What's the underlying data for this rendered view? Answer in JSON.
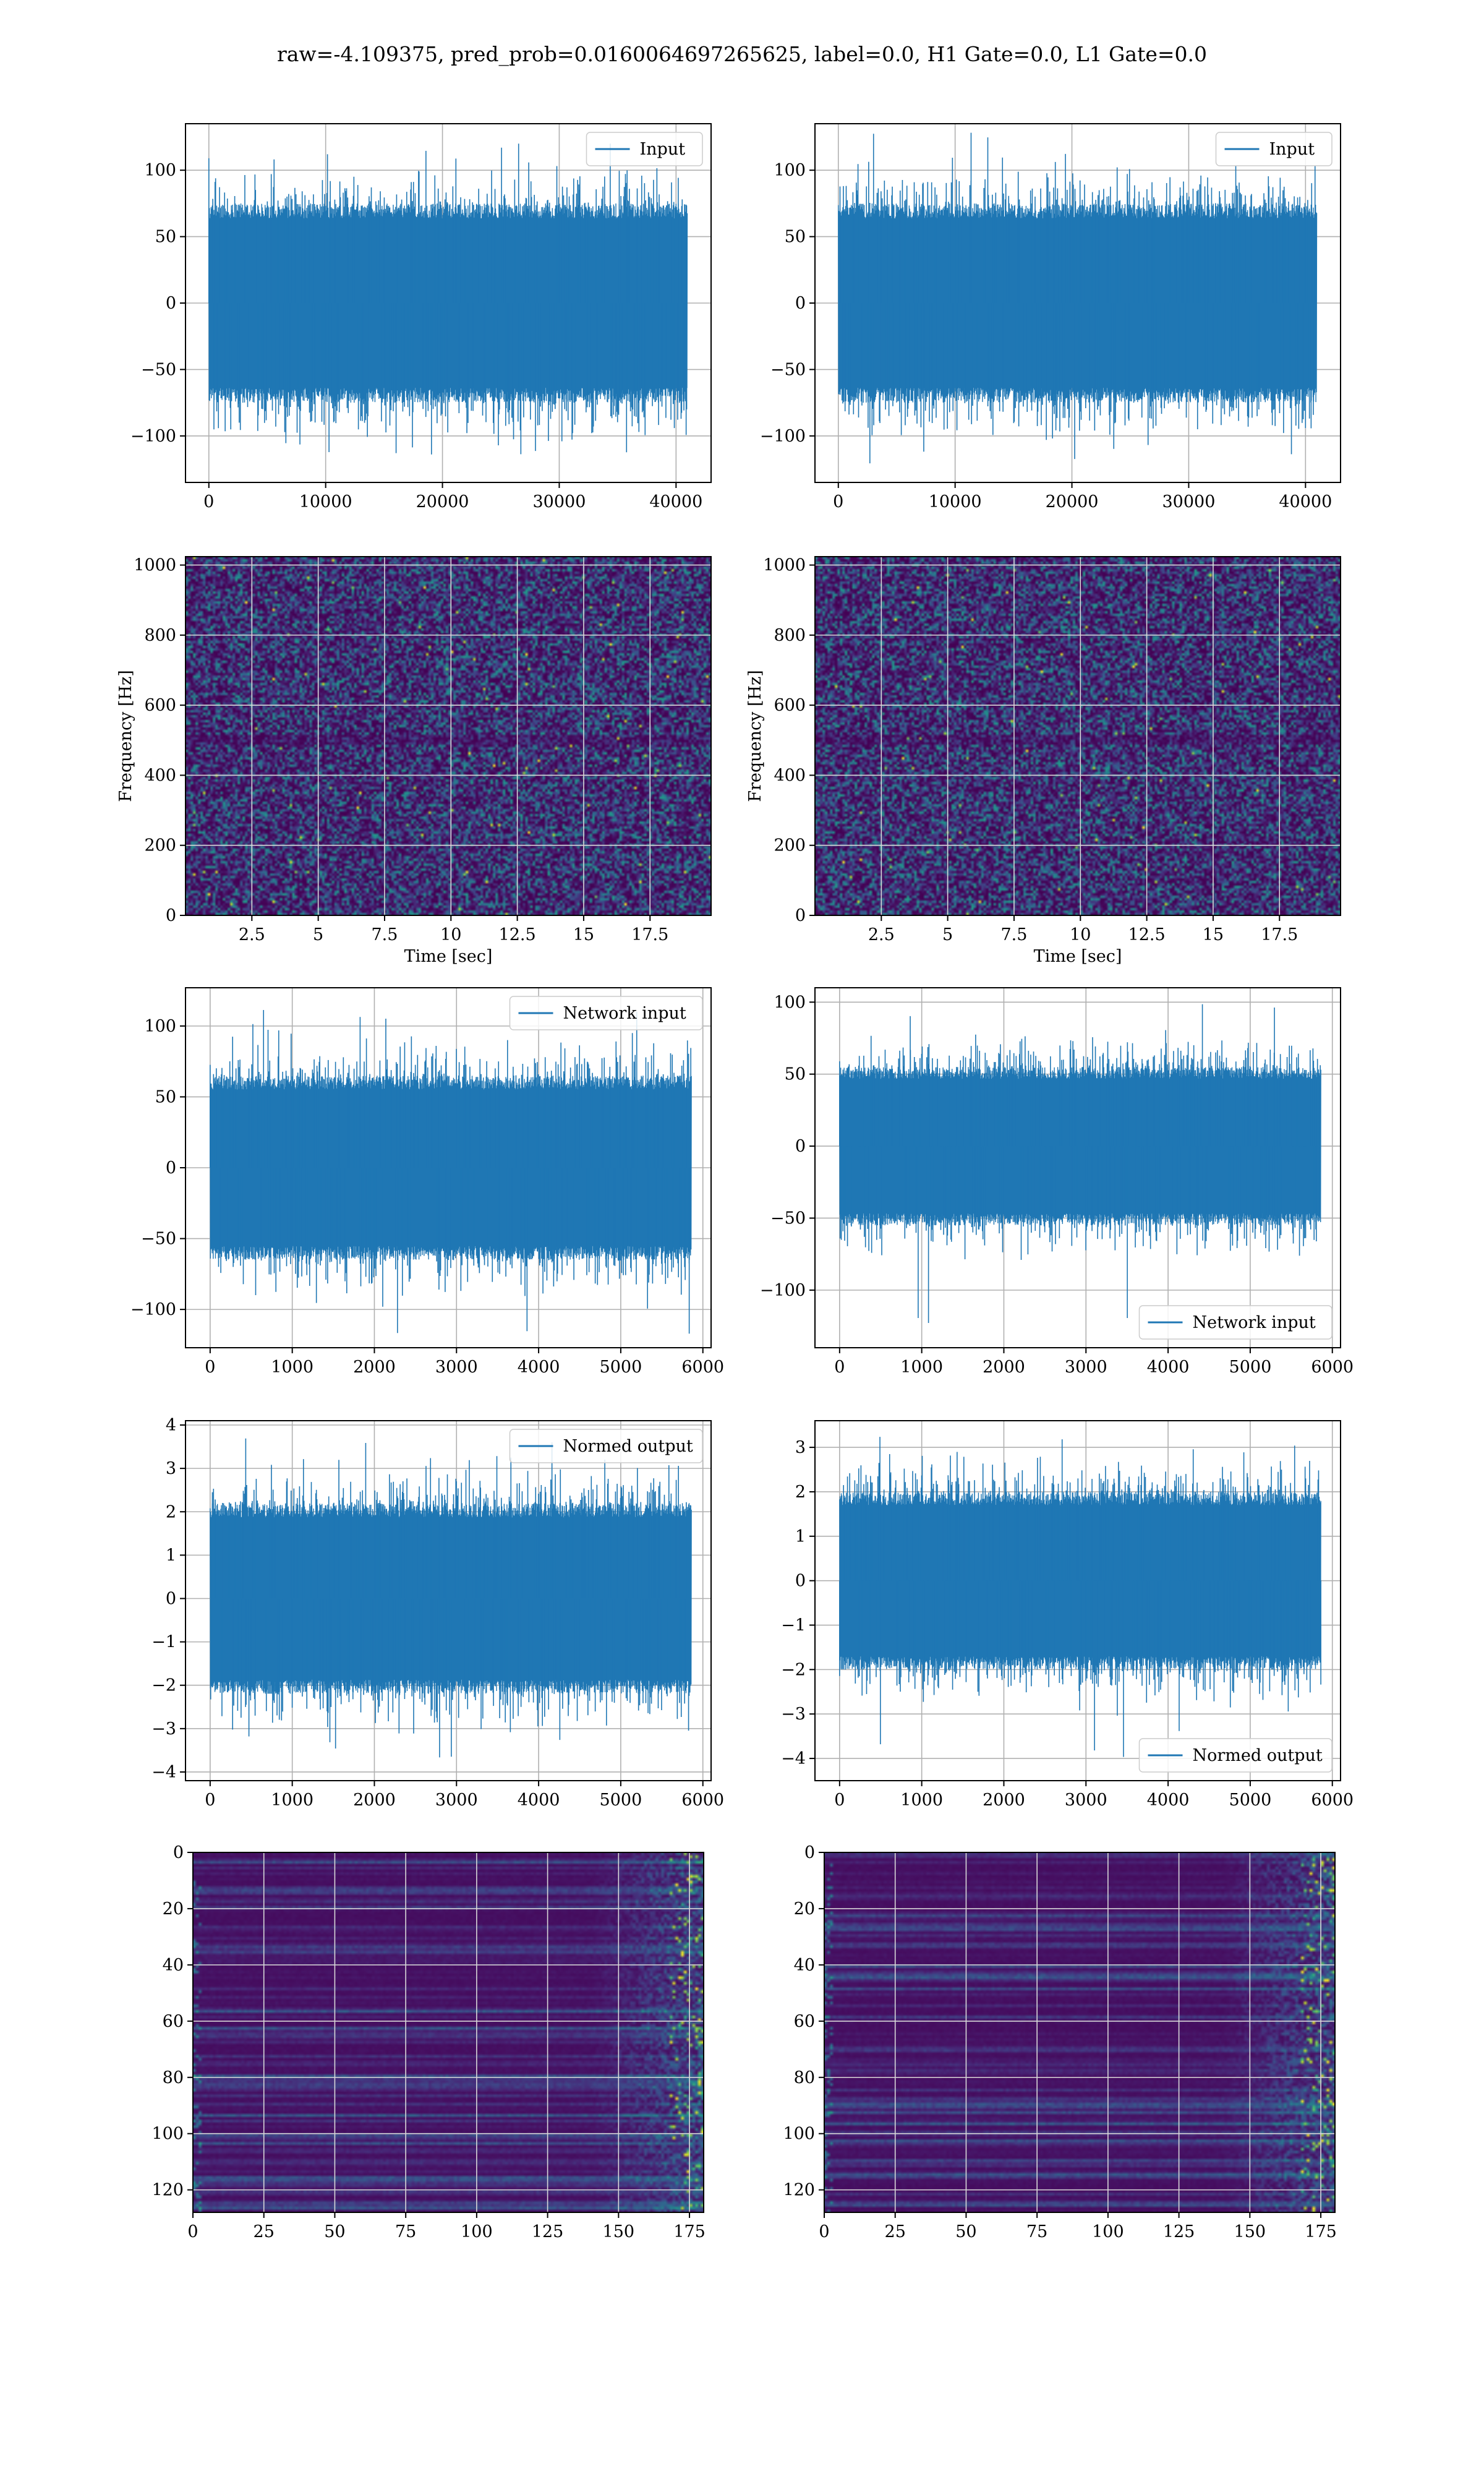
{
  "suptitle": "raw=-4.109375, pred_prob=0.0160064697265625, label=0.0, H1 Gate=0.0, L1 Gate=0.0",
  "colors": {
    "line": "#1f77b4",
    "grid": "#b0b0b0",
    "spec_bg": "#44105a",
    "spec_mid": "#3b528b",
    "spec_hi": "#21918c",
    "spec_peak": "#5ec962",
    "spec_top": "#fde725"
  },
  "chart_data": [
    {
      "id": "input_h1",
      "type": "line",
      "legend": "Input",
      "legend_loc": "upper right",
      "xlim": [
        -2000,
        43000
      ],
      "ylim": [
        -135,
        135
      ],
      "xticks": [
        0,
        10000,
        20000,
        30000,
        40000
      ],
      "yticks": [
        -100,
        -50,
        0,
        50,
        100
      ],
      "series": [
        {
          "name": "Input",
          "x_range": [
            0,
            40960
          ],
          "envelope": 75,
          "extremes": [
            -120,
            120
          ]
        }
      ],
      "grid": true
    },
    {
      "id": "input_l1",
      "type": "line",
      "legend": "Input",
      "legend_loc": "upper right",
      "xlim": [
        -2000,
        43000
      ],
      "ylim": [
        -135,
        135
      ],
      "xticks": [
        0,
        10000,
        20000,
        30000,
        40000
      ],
      "yticks": [
        -100,
        -50,
        0,
        50,
        100
      ],
      "series": [
        {
          "name": "Input",
          "x_range": [
            0,
            40960
          ],
          "envelope": 75,
          "extremes": [
            -122,
            130
          ]
        }
      ],
      "grid": true
    },
    {
      "id": "spectrogram_h1",
      "type": "heatmap",
      "xlabel": "Time [sec]",
      "ylabel": "Frequency [Hz]",
      "xlim": [
        0,
        19.8
      ],
      "ylim": [
        0,
        1024
      ],
      "xticks": [
        2.5,
        5.0,
        7.5,
        10.0,
        12.5,
        15.0,
        17.5
      ],
      "yticks": [
        0,
        200,
        400,
        600,
        800,
        1000
      ],
      "grid": true
    },
    {
      "id": "spectrogram_l1",
      "type": "heatmap",
      "xlabel": "Time [sec]",
      "ylabel": "Frequency [Hz]",
      "xlim": [
        0,
        19.8
      ],
      "ylim": [
        0,
        1024
      ],
      "xticks": [
        2.5,
        5.0,
        7.5,
        10.0,
        12.5,
        15.0,
        17.5
      ],
      "yticks": [
        0,
        200,
        400,
        600,
        800,
        1000
      ],
      "grid": true
    },
    {
      "id": "network_input_h1",
      "type": "line",
      "legend": "Network input",
      "legend_loc": "upper right",
      "xlim": [
        -300,
        6100
      ],
      "ylim": [
        -127,
        127
      ],
      "xticks": [
        0,
        1000,
        2000,
        3000,
        4000,
        5000,
        6000
      ],
      "yticks": [
        -100,
        -50,
        0,
        50,
        100
      ],
      "series": [
        {
          "name": "Network input",
          "x_range": [
            0,
            5860
          ],
          "envelope": 65,
          "extremes": [
            -118,
            113
          ]
        }
      ],
      "grid": true
    },
    {
      "id": "network_input_l1",
      "type": "line",
      "legend": "Network input",
      "legend_loc": "lower right",
      "xlim": [
        -300,
        6100
      ],
      "ylim": [
        -140,
        110
      ],
      "xticks": [
        0,
        1000,
        2000,
        3000,
        4000,
        5000,
        6000
      ],
      "yticks": [
        -100,
        -50,
        0,
        50,
        100
      ],
      "series": [
        {
          "name": "Network input",
          "x_range": [
            0,
            5860
          ],
          "envelope": 55,
          "extremes": [
            -125,
            100
          ]
        }
      ],
      "grid": true
    },
    {
      "id": "normed_output_h1",
      "type": "line",
      "legend": "Normed output",
      "legend_loc": "upper right",
      "xlim": [
        -300,
        6100
      ],
      "ylim": [
        -4.2,
        4.1
      ],
      "xticks": [
        0,
        1000,
        2000,
        3000,
        4000,
        5000,
        6000
      ],
      "yticks": [
        -4,
        -3,
        -2,
        -1,
        0,
        1,
        2,
        3,
        4
      ],
      "series": [
        {
          "name": "Normed output",
          "x_range": [
            0,
            5860
          ],
          "envelope": 2.2,
          "extremes": [
            -3.8,
            3.7
          ]
        }
      ],
      "grid": true
    },
    {
      "id": "normed_output_l1",
      "type": "line",
      "legend": "Normed output",
      "legend_loc": "lower right",
      "xlim": [
        -300,
        6100
      ],
      "ylim": [
        -4.5,
        3.6
      ],
      "xticks": [
        0,
        1000,
        2000,
        3000,
        4000,
        5000,
        6000
      ],
      "yticks": [
        -4,
        -3,
        -2,
        -1,
        0,
        1,
        2,
        3
      ],
      "series": [
        {
          "name": "Normed output",
          "x_range": [
            0,
            5860
          ],
          "envelope": 2.0,
          "extremes": [
            -4.0,
            3.3
          ]
        }
      ],
      "grid": true
    },
    {
      "id": "feature_map_h1",
      "type": "heatmap",
      "xlim": [
        0,
        180
      ],
      "ylim": [
        128,
        0
      ],
      "xticks": [
        0,
        25,
        50,
        75,
        100,
        125,
        150,
        175
      ],
      "yticks": [
        0,
        20,
        40,
        60,
        80,
        100,
        120
      ],
      "grid": true
    },
    {
      "id": "feature_map_l1",
      "type": "heatmap",
      "xlim": [
        0,
        180
      ],
      "ylim": [
        128,
        0
      ],
      "xticks": [
        0,
        25,
        50,
        75,
        100,
        125,
        150,
        175
      ],
      "yticks": [
        0,
        20,
        40,
        60,
        80,
        100,
        120
      ],
      "grid": true
    }
  ]
}
